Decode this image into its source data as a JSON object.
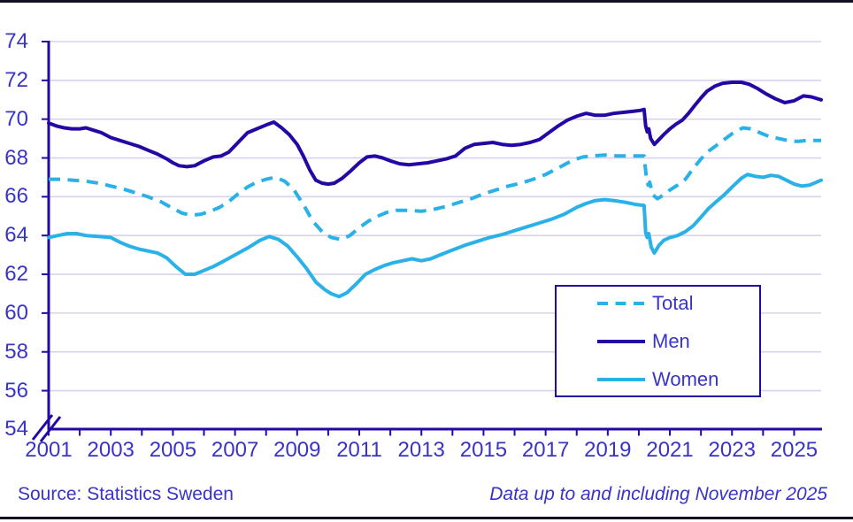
{
  "colors": {
    "line_navy": "#2508a4",
    "line_cyan": "#29b1e8",
    "text_blue": "#3934c6",
    "gridline": "#d8d2ee",
    "edge_rule": "#111122",
    "background": "#ffffff"
  },
  "y_axis": {
    "labels": [
      "74",
      "72",
      "70",
      "68",
      "66",
      "64",
      "62",
      "60",
      "58",
      "56",
      "54"
    ],
    "values": [
      74,
      72,
      70,
      68,
      66,
      64,
      62,
      60,
      58,
      56,
      54
    ],
    "has_break": true
  },
  "x_axis": {
    "labels": [
      "2001",
      "2003",
      "2005",
      "2007",
      "2009",
      "2011",
      "2013",
      "2015",
      "2017",
      "2019",
      "2021",
      "2023",
      "2025"
    ],
    "years": [
      2001,
      2003,
      2005,
      2007,
      2009,
      2011,
      2013,
      2015,
      2017,
      2019,
      2021,
      2023,
      2025
    ]
  },
  "legend": {
    "items": [
      {
        "label": "Total",
        "style": "dashed",
        "color": "#29b1e8"
      },
      {
        "label": "Men",
        "style": "solid",
        "color": "#2508a4"
      },
      {
        "label": "Women",
        "style": "solid",
        "color": "#29b1e8"
      }
    ]
  },
  "footer": {
    "source": "Source: Statistics Sweden",
    "note": "Data up to and including November 2025"
  },
  "chart_data": {
    "type": "line",
    "title": "",
    "xlabel": "",
    "ylabel": "",
    "x_range": [
      2001,
      2025.87
    ],
    "ylim": [
      54,
      74
    ],
    "y_tick_step": 2,
    "grid": true,
    "legend_position": "center-right",
    "series": [
      {
        "name": "Total",
        "dash": true,
        "color": "#29b1e8",
        "points": [
          [
            2001.0,
            66.9
          ],
          [
            2001.4,
            66.9
          ],
          [
            2001.8,
            66.85
          ],
          [
            2002.2,
            66.8
          ],
          [
            2002.6,
            66.7
          ],
          [
            2003.0,
            66.55
          ],
          [
            2003.4,
            66.4
          ],
          [
            2003.8,
            66.2
          ],
          [
            2004.2,
            66.0
          ],
          [
            2004.6,
            65.75
          ],
          [
            2005.0,
            65.4
          ],
          [
            2005.3,
            65.15
          ],
          [
            2005.6,
            65.05
          ],
          [
            2005.9,
            65.1
          ],
          [
            2006.2,
            65.25
          ],
          [
            2006.5,
            65.45
          ],
          [
            2006.8,
            65.75
          ],
          [
            2007.1,
            66.15
          ],
          [
            2007.4,
            66.5
          ],
          [
            2007.7,
            66.75
          ],
          [
            2008.0,
            66.9
          ],
          [
            2008.3,
            67.0
          ],
          [
            2008.6,
            66.8
          ],
          [
            2008.9,
            66.35
          ],
          [
            2009.2,
            65.6
          ],
          [
            2009.5,
            64.75
          ],
          [
            2009.8,
            64.2
          ],
          [
            2010.1,
            63.9
          ],
          [
            2010.4,
            63.8
          ],
          [
            2010.7,
            64.0
          ],
          [
            2011.0,
            64.4
          ],
          [
            2011.3,
            64.75
          ],
          [
            2011.6,
            65.0
          ],
          [
            2011.9,
            65.2
          ],
          [
            2012.2,
            65.3
          ],
          [
            2012.6,
            65.3
          ],
          [
            2013.0,
            65.25
          ],
          [
            2013.4,
            65.35
          ],
          [
            2013.8,
            65.5
          ],
          [
            2014.2,
            65.7
          ],
          [
            2014.6,
            65.9
          ],
          [
            2015.0,
            66.15
          ],
          [
            2015.4,
            66.35
          ],
          [
            2015.8,
            66.55
          ],
          [
            2016.2,
            66.7
          ],
          [
            2016.6,
            66.9
          ],
          [
            2017.0,
            67.15
          ],
          [
            2017.3,
            67.4
          ],
          [
            2017.6,
            67.65
          ],
          [
            2017.9,
            67.9
          ],
          [
            2018.2,
            68.05
          ],
          [
            2018.5,
            68.1
          ],
          [
            2018.9,
            68.15
          ],
          [
            2019.3,
            68.1
          ],
          [
            2019.7,
            68.1
          ],
          [
            2020.0,
            68.1
          ],
          [
            2020.17,
            68.1
          ],
          [
            2020.25,
            66.9
          ],
          [
            2020.3,
            66.6
          ],
          [
            2020.35,
            66.75
          ],
          [
            2020.45,
            66.1
          ],
          [
            2020.6,
            65.9
          ],
          [
            2020.8,
            66.1
          ],
          [
            2021.0,
            66.35
          ],
          [
            2021.25,
            66.6
          ],
          [
            2021.5,
            66.9
          ],
          [
            2021.75,
            67.45
          ],
          [
            2022.0,
            67.95
          ],
          [
            2022.25,
            68.35
          ],
          [
            2022.5,
            68.65
          ],
          [
            2022.75,
            68.95
          ],
          [
            2023.0,
            69.25
          ],
          [
            2023.35,
            69.55
          ],
          [
            2023.6,
            69.5
          ],
          [
            2023.9,
            69.3
          ],
          [
            2024.2,
            69.1
          ],
          [
            2024.5,
            69.0
          ],
          [
            2024.8,
            68.9
          ],
          [
            2025.1,
            68.85
          ],
          [
            2025.4,
            68.9
          ],
          [
            2025.87,
            68.9
          ]
        ]
      },
      {
        "name": "Men",
        "dash": false,
        "color": "#2508a4",
        "points": [
          [
            2001.0,
            69.8
          ],
          [
            2001.25,
            69.65
          ],
          [
            2001.5,
            69.55
          ],
          [
            2001.75,
            69.5
          ],
          [
            2002.0,
            69.5
          ],
          [
            2002.2,
            69.55
          ],
          [
            2002.4,
            69.45
          ],
          [
            2002.7,
            69.3
          ],
          [
            2003.0,
            69.05
          ],
          [
            2003.3,
            68.9
          ],
          [
            2003.6,
            68.75
          ],
          [
            2003.9,
            68.6
          ],
          [
            2004.2,
            68.4
          ],
          [
            2004.5,
            68.2
          ],
          [
            2004.8,
            67.95
          ],
          [
            2005.0,
            67.75
          ],
          [
            2005.2,
            67.6
          ],
          [
            2005.45,
            67.55
          ],
          [
            2005.7,
            67.6
          ],
          [
            2006.0,
            67.85
          ],
          [
            2006.3,
            68.05
          ],
          [
            2006.55,
            68.1
          ],
          [
            2006.8,
            68.3
          ],
          [
            2007.1,
            68.8
          ],
          [
            2007.4,
            69.3
          ],
          [
            2007.7,
            69.5
          ],
          [
            2008.0,
            69.7
          ],
          [
            2008.25,
            69.85
          ],
          [
            2008.5,
            69.55
          ],
          [
            2008.75,
            69.2
          ],
          [
            2009.0,
            68.7
          ],
          [
            2009.2,
            68.1
          ],
          [
            2009.4,
            67.4
          ],
          [
            2009.6,
            66.85
          ],
          [
            2009.8,
            66.7
          ],
          [
            2010.0,
            66.65
          ],
          [
            2010.2,
            66.7
          ],
          [
            2010.45,
            66.95
          ],
          [
            2010.7,
            67.3
          ],
          [
            2011.0,
            67.75
          ],
          [
            2011.25,
            68.05
          ],
          [
            2011.5,
            68.1
          ],
          [
            2011.75,
            68.0
          ],
          [
            2012.0,
            67.85
          ],
          [
            2012.3,
            67.7
          ],
          [
            2012.6,
            67.65
          ],
          [
            2012.9,
            67.7
          ],
          [
            2013.2,
            67.75
          ],
          [
            2013.5,
            67.85
          ],
          [
            2013.8,
            67.95
          ],
          [
            2014.1,
            68.1
          ],
          [
            2014.4,
            68.5
          ],
          [
            2014.7,
            68.7
          ],
          [
            2015.0,
            68.75
          ],
          [
            2015.3,
            68.8
          ],
          [
            2015.6,
            68.7
          ],
          [
            2015.9,
            68.65
          ],
          [
            2016.2,
            68.7
          ],
          [
            2016.5,
            68.8
          ],
          [
            2016.8,
            68.95
          ],
          [
            2017.1,
            69.3
          ],
          [
            2017.4,
            69.65
          ],
          [
            2017.7,
            69.95
          ],
          [
            2018.0,
            70.15
          ],
          [
            2018.3,
            70.3
          ],
          [
            2018.6,
            70.2
          ],
          [
            2018.9,
            70.2
          ],
          [
            2019.2,
            70.3
          ],
          [
            2019.5,
            70.35
          ],
          [
            2019.8,
            70.4
          ],
          [
            2020.05,
            70.45
          ],
          [
            2020.17,
            70.5
          ],
          [
            2020.22,
            69.65
          ],
          [
            2020.27,
            69.35
          ],
          [
            2020.32,
            69.5
          ],
          [
            2020.38,
            69.0
          ],
          [
            2020.5,
            68.7
          ],
          [
            2020.65,
            68.95
          ],
          [
            2020.8,
            69.2
          ],
          [
            2021.0,
            69.5
          ],
          [
            2021.2,
            69.75
          ],
          [
            2021.4,
            69.95
          ],
          [
            2021.6,
            70.3
          ],
          [
            2021.8,
            70.7
          ],
          [
            2022.0,
            71.1
          ],
          [
            2022.2,
            71.45
          ],
          [
            2022.45,
            71.7
          ],
          [
            2022.7,
            71.85
          ],
          [
            2023.0,
            71.9
          ],
          [
            2023.3,
            71.9
          ],
          [
            2023.55,
            71.8
          ],
          [
            2023.8,
            71.6
          ],
          [
            2024.1,
            71.3
          ],
          [
            2024.4,
            71.05
          ],
          [
            2024.7,
            70.85
          ],
          [
            2025.0,
            70.95
          ],
          [
            2025.3,
            71.2
          ],
          [
            2025.55,
            71.15
          ],
          [
            2025.87,
            71.0
          ]
        ]
      },
      {
        "name": "Women",
        "dash": false,
        "color": "#29b1e8",
        "points": [
          [
            2001.0,
            63.9
          ],
          [
            2001.3,
            64.0
          ],
          [
            2001.6,
            64.1
          ],
          [
            2001.9,
            64.1
          ],
          [
            2002.2,
            64.0
          ],
          [
            2002.6,
            63.95
          ],
          [
            2003.0,
            63.9
          ],
          [
            2003.3,
            63.65
          ],
          [
            2003.6,
            63.45
          ],
          [
            2003.9,
            63.3
          ],
          [
            2004.2,
            63.2
          ],
          [
            2004.5,
            63.1
          ],
          [
            2004.8,
            62.85
          ],
          [
            2005.1,
            62.4
          ],
          [
            2005.4,
            62.0
          ],
          [
            2005.7,
            62.0
          ],
          [
            2006.0,
            62.2
          ],
          [
            2006.3,
            62.4
          ],
          [
            2006.6,
            62.65
          ],
          [
            2007.0,
            63.0
          ],
          [
            2007.4,
            63.35
          ],
          [
            2007.8,
            63.75
          ],
          [
            2008.1,
            63.95
          ],
          [
            2008.4,
            63.8
          ],
          [
            2008.7,
            63.45
          ],
          [
            2009.0,
            62.9
          ],
          [
            2009.3,
            62.3
          ],
          [
            2009.6,
            61.6
          ],
          [
            2009.9,
            61.2
          ],
          [
            2010.1,
            61.0
          ],
          [
            2010.35,
            60.85
          ],
          [
            2010.6,
            61.05
          ],
          [
            2010.9,
            61.5
          ],
          [
            2011.2,
            62.0
          ],
          [
            2011.5,
            62.25
          ],
          [
            2011.8,
            62.45
          ],
          [
            2012.1,
            62.6
          ],
          [
            2012.4,
            62.7
          ],
          [
            2012.7,
            62.8
          ],
          [
            2013.0,
            62.7
          ],
          [
            2013.3,
            62.8
          ],
          [
            2013.6,
            63.0
          ],
          [
            2014.0,
            63.25
          ],
          [
            2014.4,
            63.5
          ],
          [
            2014.8,
            63.7
          ],
          [
            2015.2,
            63.9
          ],
          [
            2015.6,
            64.05
          ],
          [
            2016.0,
            64.25
          ],
          [
            2016.4,
            64.45
          ],
          [
            2016.8,
            64.65
          ],
          [
            2017.2,
            64.85
          ],
          [
            2017.6,
            65.1
          ],
          [
            2018.0,
            65.45
          ],
          [
            2018.3,
            65.65
          ],
          [
            2018.6,
            65.8
          ],
          [
            2018.9,
            65.85
          ],
          [
            2019.2,
            65.8
          ],
          [
            2019.6,
            65.7
          ],
          [
            2019.9,
            65.6
          ],
          [
            2020.17,
            65.55
          ],
          [
            2020.22,
            64.15
          ],
          [
            2020.27,
            63.9
          ],
          [
            2020.32,
            64.1
          ],
          [
            2020.4,
            63.4
          ],
          [
            2020.5,
            63.1
          ],
          [
            2020.65,
            63.5
          ],
          [
            2020.8,
            63.75
          ],
          [
            2021.0,
            63.9
          ],
          [
            2021.25,
            64.0
          ],
          [
            2021.5,
            64.2
          ],
          [
            2021.75,
            64.5
          ],
          [
            2022.0,
            64.95
          ],
          [
            2022.25,
            65.4
          ],
          [
            2022.5,
            65.75
          ],
          [
            2022.75,
            66.1
          ],
          [
            2023.0,
            66.5
          ],
          [
            2023.3,
            66.95
          ],
          [
            2023.5,
            67.15
          ],
          [
            2023.75,
            67.05
          ],
          [
            2024.0,
            67.0
          ],
          [
            2024.25,
            67.1
          ],
          [
            2024.5,
            67.05
          ],
          [
            2024.75,
            66.85
          ],
          [
            2025.0,
            66.65
          ],
          [
            2025.25,
            66.55
          ],
          [
            2025.5,
            66.6
          ],
          [
            2025.87,
            66.85
          ]
        ]
      }
    ]
  }
}
